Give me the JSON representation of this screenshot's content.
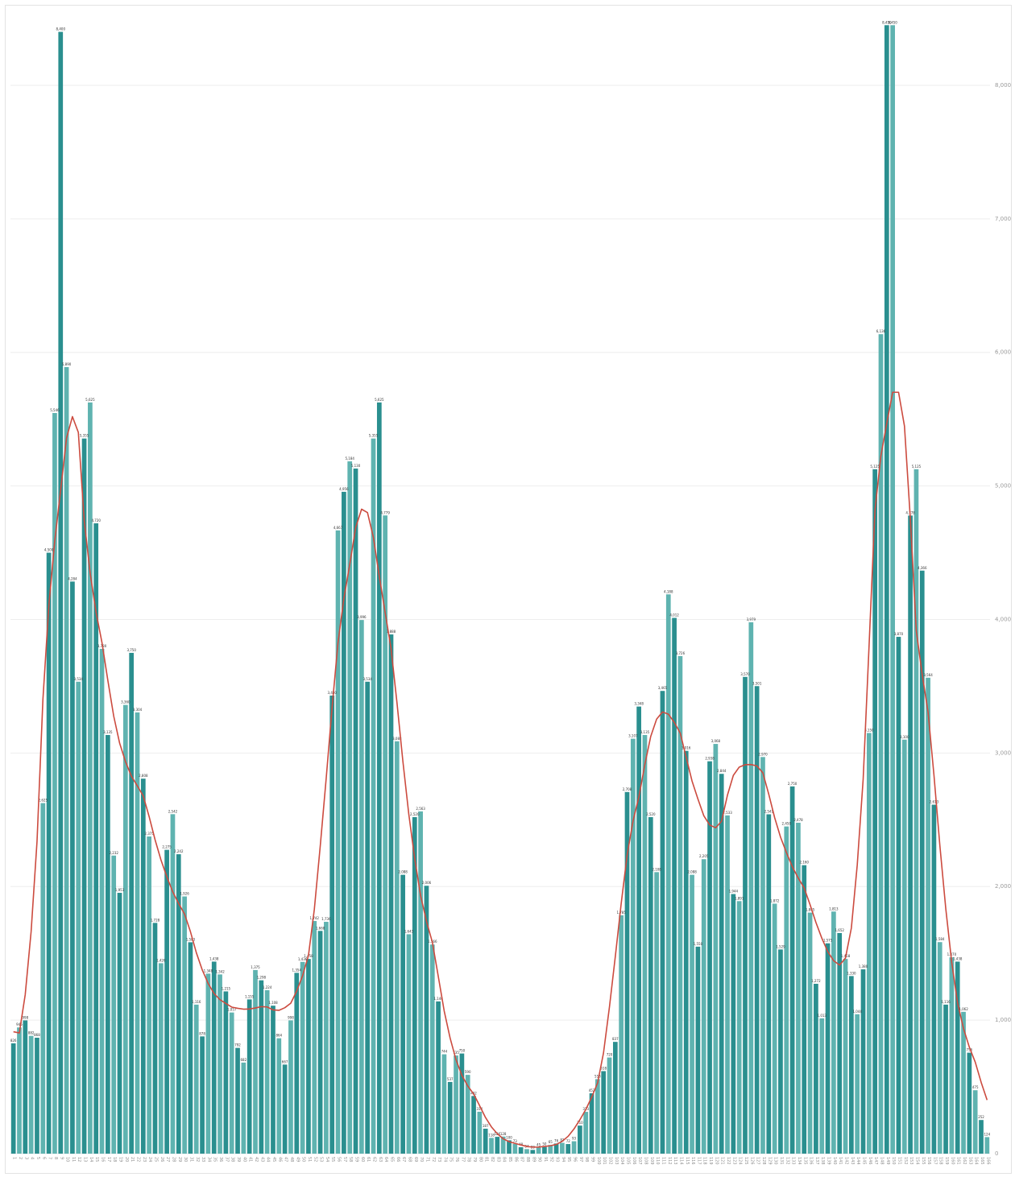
{
  "chart_data": {
    "type": "bar",
    "overlay": "line",
    "title": "",
    "xlabel": "",
    "ylabel": "",
    "ylim": [
      0,
      8500
    ],
    "y_axis_side": "right",
    "yticks": [
      0,
      1000,
      2000,
      3000,
      4000,
      5000,
      6000,
      7000,
      8000
    ],
    "grid": true,
    "legend": "none",
    "colors": {
      "bar": "#2a8f8f",
      "bar_light": "#5fb3b0",
      "line": "#cc4b3f",
      "grid": "#eeeeee"
    },
    "peak_bars": [
      {
        "index": 8,
        "value": 8400
      },
      {
        "index": 148,
        "value": 8450
      },
      {
        "index": 149,
        "value": 8450
      }
    ],
    "anchors": [
      [
        0,
        700
      ],
      [
        4,
        1400
      ],
      [
        7,
        4700
      ],
      [
        9,
        6200
      ],
      [
        11,
        5700
      ],
      [
        13,
        4500
      ],
      [
        15,
        3500
      ],
      [
        17,
        3100
      ],
      [
        19,
        3200
      ],
      [
        22,
        2600
      ],
      [
        25,
        2300
      ],
      [
        28,
        1900
      ],
      [
        31,
        1550
      ],
      [
        34,
        1150
      ],
      [
        38,
        1100
      ],
      [
        42,
        1100
      ],
      [
        45,
        1200
      ],
      [
        47,
        950
      ],
      [
        50,
        1350
      ],
      [
        53,
        2800
      ],
      [
        56,
        4200
      ],
      [
        58,
        5400
      ],
      [
        60,
        5700
      ],
      [
        62,
        4500
      ],
      [
        64,
        3600
      ],
      [
        66,
        2900
      ],
      [
        68,
        2400
      ],
      [
        70,
        1700
      ],
      [
        72,
        1200
      ],
      [
        75,
        700
      ],
      [
        78,
        400
      ],
      [
        82,
        120
      ],
      [
        86,
        50
      ],
      [
        90,
        40
      ],
      [
        94,
        100
      ],
      [
        97,
        250
      ],
      [
        100,
        650
      ],
      [
        103,
        1700
      ],
      [
        106,
        3100
      ],
      [
        108,
        3500
      ],
      [
        110,
        3300
      ],
      [
        113,
        3450
      ],
      [
        115,
        2900
      ],
      [
        117,
        2100
      ],
      [
        119,
        2600
      ],
      [
        122,
        2700
      ],
      [
        124,
        3400
      ],
      [
        127,
        2750
      ],
      [
        129,
        2600
      ],
      [
        132,
        2200
      ],
      [
        135,
        1900
      ],
      [
        138,
        1500
      ],
      [
        141,
        1350
      ],
      [
        143,
        1450
      ],
      [
        145,
        3000
      ],
      [
        147,
        5200
      ],
      [
        149,
        5750
      ],
      [
        151,
        5000
      ],
      [
        153,
        4100
      ],
      [
        155,
        3300
      ],
      [
        157,
        2200
      ],
      [
        159,
        1400
      ],
      [
        161,
        900
      ],
      [
        163,
        500
      ],
      [
        165,
        200
      ]
    ]
  }
}
